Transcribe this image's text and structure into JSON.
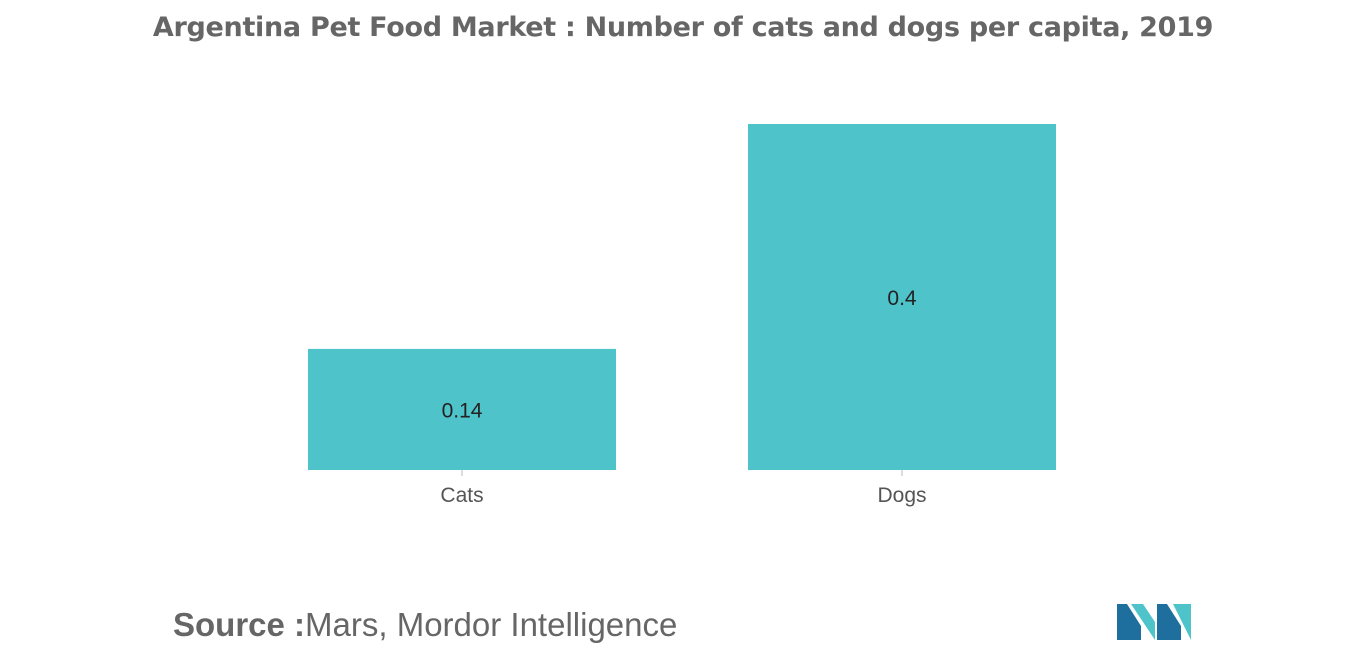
{
  "chart_data": {
    "type": "bar",
    "title": "Argentina Pet Food Market : Number of cats and dogs per capita, 2019",
    "categories": [
      "Cats",
      "Dogs"
    ],
    "values": [
      0.14,
      0.4
    ],
    "data_labels": [
      "0.14",
      "0.4"
    ],
    "xlabel": "",
    "ylabel": "",
    "ylim": [
      0,
      0.4
    ],
    "grid": false,
    "legend": "none",
    "bar_color": "#4fc3ca"
  },
  "source": {
    "label": "Source :",
    "text": "Mars, Mordor Intelligence"
  },
  "logo": {
    "icon": "mordor-intelligence-logo",
    "colors": [
      "#1f6f9e",
      "#4fc3ca"
    ]
  }
}
